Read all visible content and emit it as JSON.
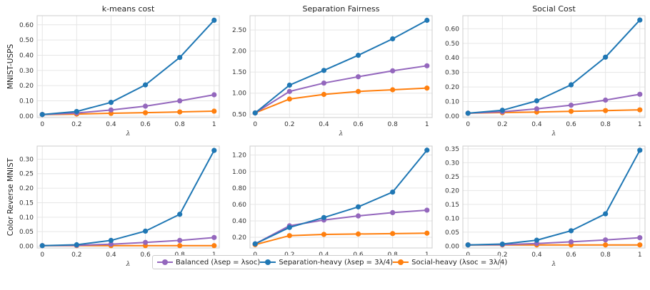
{
  "colors": {
    "balanced": "#9467bd",
    "separation_heavy": "#1f77b4",
    "social_heavy": "#ff7f0e",
    "grid": "#e6e6e6",
    "axis": "#cccccc"
  },
  "column_titles": [
    "k-means cost",
    "Separation Fairness",
    "Social Cost"
  ],
  "row_labels": [
    "MNIST-USPS",
    "Color Reverse MNIST"
  ],
  "legend": {
    "balanced": "Balanced (λsep = λsoc)",
    "separation_heavy": "Separation-heavy (λsep = 3λ/4)",
    "social_heavy": "Social-heavy (λsoc = 3λ/4)"
  },
  "chart_data": [
    {
      "type": "line",
      "row": 0,
      "col": 0,
      "title": "k-means cost",
      "xlabel": "λ",
      "ylabel": "MNIST-USPS",
      "x": [
        0,
        0.2,
        0.4,
        0.6,
        0.8,
        1
      ],
      "x_ticks": [
        "0",
        "0.2",
        "0.4",
        "0.6",
        "0.8",
        "1"
      ],
      "ylim": [
        -0.01,
        0.66
      ],
      "y_ticks": [
        "0.00",
        "0.10",
        "0.20",
        "0.30",
        "0.40",
        "0.50",
        "0.60"
      ],
      "grid": true,
      "series": [
        {
          "name": "Balanced",
          "key": "balanced",
          "values": [
            0.01,
            0.02,
            0.04,
            0.065,
            0.1,
            0.14
          ]
        },
        {
          "name": "Separation-heavy",
          "key": "separation_heavy",
          "values": [
            0.01,
            0.03,
            0.09,
            0.205,
            0.385,
            0.63
          ]
        },
        {
          "name": "Social-heavy",
          "key": "social_heavy",
          "values": [
            0.01,
            0.013,
            0.018,
            0.022,
            0.027,
            0.032
          ]
        }
      ]
    },
    {
      "type": "line",
      "row": 0,
      "col": 1,
      "title": "Separation Fairness",
      "xlabel": "λ",
      "ylabel": "",
      "x": [
        0,
        0.2,
        0.4,
        0.6,
        0.8,
        1
      ],
      "x_ticks": [
        "0",
        "0.2",
        "0.4",
        "0.6",
        "0.8",
        "1"
      ],
      "ylim": [
        0.42,
        2.84
      ],
      "y_ticks": [
        "0.50",
        "1.00",
        "1.50",
        "2.00",
        "2.50"
      ],
      "grid": true,
      "series": [
        {
          "name": "Balanced",
          "key": "balanced",
          "values": [
            0.53,
            1.04,
            1.24,
            1.39,
            1.53,
            1.65
          ]
        },
        {
          "name": "Separation-heavy",
          "key": "separation_heavy",
          "values": [
            0.53,
            1.19,
            1.54,
            1.9,
            2.29,
            2.73
          ]
        },
        {
          "name": "Social-heavy",
          "key": "social_heavy",
          "values": [
            0.53,
            0.86,
            0.97,
            1.04,
            1.08,
            1.12
          ]
        }
      ]
    },
    {
      "type": "line",
      "row": 0,
      "col": 2,
      "title": "Social Cost",
      "xlabel": "λ",
      "ylabel": "",
      "x": [
        0,
        0.2,
        0.4,
        0.6,
        0.8,
        1
      ],
      "x_ticks": [
        "0",
        "0.2",
        "0.4",
        "0.6",
        "0.8",
        "1"
      ],
      "ylim": [
        -0.01,
        0.69
      ],
      "y_ticks": [
        "0.00",
        "0.10",
        "0.20",
        "0.30",
        "0.40",
        "0.50",
        "0.60"
      ],
      "grid": true,
      "series": [
        {
          "name": "Balanced",
          "key": "balanced",
          "values": [
            0.02,
            0.03,
            0.05,
            0.075,
            0.11,
            0.15
          ]
        },
        {
          "name": "Separation-heavy",
          "key": "separation_heavy",
          "values": [
            0.02,
            0.04,
            0.105,
            0.215,
            0.405,
            0.66
          ]
        },
        {
          "name": "Social-heavy",
          "key": "social_heavy",
          "values": [
            0.02,
            0.024,
            0.028,
            0.033,
            0.038,
            0.043
          ]
        }
      ]
    },
    {
      "type": "line",
      "row": 1,
      "col": 0,
      "title": "",
      "xlabel": "λ",
      "ylabel": "Color Reverse MNIST",
      "x": [
        0,
        0.2,
        0.4,
        0.6,
        0.8,
        1
      ],
      "x_ticks": [
        "0",
        "0.2",
        "0.4",
        "0.6",
        "0.8",
        "1"
      ],
      "ylim": [
        -0.006,
        0.345
      ],
      "y_ticks": [
        "0.00",
        "0.05",
        "0.10",
        "0.15",
        "0.20",
        "0.25",
        "0.30"
      ],
      "grid": true,
      "series": [
        {
          "name": "Balanced",
          "key": "balanced",
          "values": [
            0.002,
            0.003,
            0.007,
            0.013,
            0.02,
            0.03
          ]
        },
        {
          "name": "Separation-heavy",
          "key": "separation_heavy",
          "values": [
            0.002,
            0.005,
            0.02,
            0.052,
            0.11,
            0.33
          ]
        },
        {
          "name": "Social-heavy",
          "key": "social_heavy",
          "values": [
            0.002,
            0.002,
            0.002,
            0.002,
            0.002,
            0.002
          ]
        }
      ]
    },
    {
      "type": "line",
      "row": 1,
      "col": 1,
      "title": "",
      "xlabel": "λ",
      "ylabel": "",
      "x": [
        0,
        0.2,
        0.4,
        0.6,
        0.8,
        1
      ],
      "x_ticks": [
        "0",
        "0.2",
        "0.4",
        "0.6",
        "0.8",
        "1"
      ],
      "ylim": [
        0.07,
        1.31
      ],
      "y_ticks": [
        "0.20",
        "0.40",
        "0.60",
        "0.80",
        "1.00",
        "1.20"
      ],
      "grid": true,
      "series": [
        {
          "name": "Balanced",
          "key": "balanced",
          "values": [
            0.12,
            0.34,
            0.41,
            0.46,
            0.5,
            0.53
          ]
        },
        {
          "name": "Separation-heavy",
          "key": "separation_heavy",
          "values": [
            0.12,
            0.32,
            0.44,
            0.57,
            0.75,
            1.26
          ]
        },
        {
          "name": "Social-heavy",
          "key": "social_heavy",
          "values": [
            0.11,
            0.22,
            0.235,
            0.24,
            0.245,
            0.25
          ]
        }
      ]
    },
    {
      "type": "line",
      "row": 1,
      "col": 2,
      "title": "",
      "xlabel": "λ",
      "ylabel": "",
      "x": [
        0,
        0.2,
        0.4,
        0.6,
        0.8,
        1
      ],
      "x_ticks": [
        "0",
        "0.2",
        "0.4",
        "0.6",
        "0.8",
        "1"
      ],
      "ylim": [
        -0.007,
        0.36
      ],
      "y_ticks": [
        "0.00",
        "0.05",
        "0.10",
        "0.15",
        "0.20",
        "0.25",
        "0.30",
        "0.35"
      ],
      "grid": true,
      "series": [
        {
          "name": "Balanced",
          "key": "balanced",
          "values": [
            0.004,
            0.005,
            0.009,
            0.015,
            0.022,
            0.03
          ]
        },
        {
          "name": "Separation-heavy",
          "key": "separation_heavy",
          "values": [
            0.004,
            0.007,
            0.021,
            0.055,
            0.116,
            0.345
          ]
        },
        {
          "name": "Social-heavy",
          "key": "social_heavy",
          "values": [
            0.004,
            0.004,
            0.004,
            0.004,
            0.004,
            0.004
          ]
        }
      ]
    }
  ]
}
